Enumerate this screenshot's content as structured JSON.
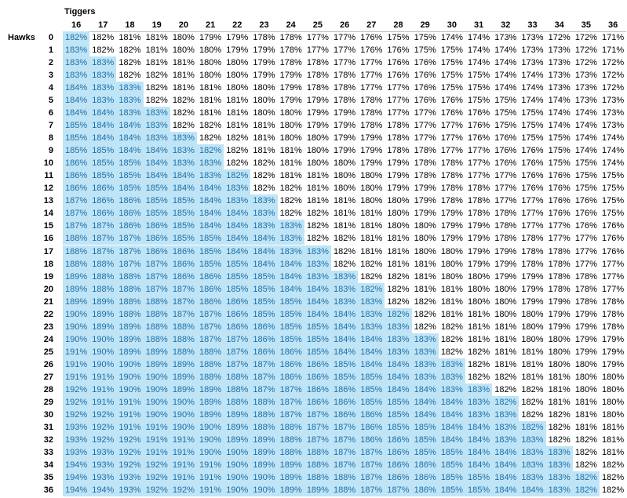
{
  "table": {
    "title": "Tiggers",
    "row_title": "Hawks",
    "highlight_color": "#bfe4f6",
    "highlight_text_color": "#1c6fa6",
    "columns": [
      "16",
      "17",
      "18",
      "19",
      "20",
      "21",
      "22",
      "23",
      "24",
      "25",
      "26",
      "27",
      "28",
      "29",
      "30",
      "31",
      "32",
      "33",
      "34",
      "35",
      "36"
    ],
    "rows": [
      {
        "label": "0",
        "highlight": 1,
        "cells": [
          "182%",
          "182%",
          "181%",
          "181%",
          "180%",
          "179%",
          "179%",
          "178%",
          "178%",
          "177%",
          "177%",
          "176%",
          "175%",
          "175%",
          "174%",
          "174%",
          "173%",
          "173%",
          "172%",
          "172%",
          "171%"
        ]
      },
      {
        "label": "1",
        "highlight": 1,
        "cells": [
          "183%",
          "182%",
          "182%",
          "181%",
          "180%",
          "180%",
          "179%",
          "179%",
          "178%",
          "177%",
          "177%",
          "176%",
          "176%",
          "175%",
          "175%",
          "174%",
          "174%",
          "173%",
          "173%",
          "172%",
          "171%"
        ]
      },
      {
        "label": "2",
        "highlight": 2,
        "cells": [
          "183%",
          "183%",
          "182%",
          "181%",
          "181%",
          "180%",
          "180%",
          "179%",
          "178%",
          "178%",
          "177%",
          "177%",
          "176%",
          "176%",
          "175%",
          "174%",
          "174%",
          "173%",
          "173%",
          "172%",
          "172%"
        ]
      },
      {
        "label": "3",
        "highlight": 2,
        "cells": [
          "183%",
          "183%",
          "182%",
          "182%",
          "181%",
          "180%",
          "180%",
          "179%",
          "179%",
          "178%",
          "178%",
          "177%",
          "176%",
          "176%",
          "175%",
          "175%",
          "174%",
          "174%",
          "173%",
          "173%",
          "172%"
        ]
      },
      {
        "label": "4",
        "highlight": 3,
        "cells": [
          "184%",
          "183%",
          "183%",
          "182%",
          "181%",
          "181%",
          "180%",
          "180%",
          "179%",
          "178%",
          "178%",
          "177%",
          "177%",
          "176%",
          "175%",
          "175%",
          "174%",
          "174%",
          "173%",
          "173%",
          "172%"
        ]
      },
      {
        "label": "5",
        "highlight": 3,
        "cells": [
          "184%",
          "183%",
          "183%",
          "182%",
          "182%",
          "181%",
          "181%",
          "180%",
          "179%",
          "179%",
          "178%",
          "178%",
          "177%",
          "176%",
          "176%",
          "175%",
          "175%",
          "174%",
          "174%",
          "173%",
          "173%"
        ]
      },
      {
        "label": "6",
        "highlight": 4,
        "cells": [
          "184%",
          "184%",
          "183%",
          "183%",
          "182%",
          "181%",
          "181%",
          "180%",
          "180%",
          "179%",
          "179%",
          "178%",
          "177%",
          "177%",
          "176%",
          "176%",
          "175%",
          "175%",
          "174%",
          "174%",
          "173%"
        ]
      },
      {
        "label": "7",
        "highlight": 4,
        "cells": [
          "185%",
          "184%",
          "184%",
          "183%",
          "182%",
          "182%",
          "181%",
          "181%",
          "180%",
          "179%",
          "179%",
          "178%",
          "178%",
          "177%",
          "177%",
          "176%",
          "175%",
          "175%",
          "174%",
          "174%",
          "173%"
        ]
      },
      {
        "label": "8",
        "highlight": 5,
        "cells": [
          "185%",
          "184%",
          "184%",
          "183%",
          "183%",
          "182%",
          "182%",
          "181%",
          "180%",
          "180%",
          "179%",
          "179%",
          "178%",
          "177%",
          "177%",
          "176%",
          "176%",
          "175%",
          "175%",
          "174%",
          "174%"
        ]
      },
      {
        "label": "9",
        "highlight": 6,
        "cells": [
          "185%",
          "185%",
          "184%",
          "184%",
          "183%",
          "182%",
          "182%",
          "181%",
          "181%",
          "180%",
          "179%",
          "179%",
          "178%",
          "178%",
          "177%",
          "177%",
          "176%",
          "176%",
          "175%",
          "174%",
          "174%"
        ]
      },
      {
        "label": "10",
        "highlight": 6,
        "cells": [
          "186%",
          "185%",
          "185%",
          "184%",
          "183%",
          "183%",
          "182%",
          "182%",
          "181%",
          "180%",
          "180%",
          "179%",
          "179%",
          "178%",
          "178%",
          "177%",
          "176%",
          "176%",
          "175%",
          "175%",
          "174%"
        ]
      },
      {
        "label": "11",
        "highlight": 7,
        "cells": [
          "186%",
          "185%",
          "185%",
          "184%",
          "184%",
          "183%",
          "182%",
          "182%",
          "181%",
          "181%",
          "180%",
          "180%",
          "179%",
          "178%",
          "178%",
          "177%",
          "177%",
          "176%",
          "176%",
          "175%",
          "175%"
        ]
      },
      {
        "label": "12",
        "highlight": 7,
        "cells": [
          "186%",
          "186%",
          "185%",
          "185%",
          "184%",
          "184%",
          "183%",
          "182%",
          "182%",
          "181%",
          "180%",
          "180%",
          "179%",
          "179%",
          "178%",
          "178%",
          "177%",
          "176%",
          "176%",
          "175%",
          "175%"
        ]
      },
      {
        "label": "13",
        "highlight": 8,
        "cells": [
          "187%",
          "186%",
          "186%",
          "185%",
          "185%",
          "184%",
          "183%",
          "183%",
          "182%",
          "181%",
          "181%",
          "180%",
          "180%",
          "179%",
          "178%",
          "178%",
          "177%",
          "177%",
          "176%",
          "176%",
          "175%"
        ]
      },
      {
        "label": "14",
        "highlight": 8,
        "cells": [
          "187%",
          "186%",
          "186%",
          "185%",
          "185%",
          "184%",
          "184%",
          "183%",
          "182%",
          "182%",
          "181%",
          "181%",
          "180%",
          "179%",
          "179%",
          "178%",
          "178%",
          "177%",
          "176%",
          "176%",
          "175%"
        ]
      },
      {
        "label": "15",
        "highlight": 9,
        "cells": [
          "187%",
          "187%",
          "186%",
          "186%",
          "185%",
          "184%",
          "184%",
          "183%",
          "183%",
          "182%",
          "181%",
          "181%",
          "180%",
          "180%",
          "179%",
          "179%",
          "178%",
          "177%",
          "177%",
          "176%",
          "176%"
        ]
      },
      {
        "label": "16",
        "highlight": 9,
        "cells": [
          "188%",
          "187%",
          "187%",
          "186%",
          "185%",
          "185%",
          "184%",
          "184%",
          "183%",
          "182%",
          "182%",
          "181%",
          "181%",
          "180%",
          "179%",
          "179%",
          "178%",
          "178%",
          "177%",
          "177%",
          "176%"
        ]
      },
      {
        "label": "17",
        "highlight": 10,
        "cells": [
          "188%",
          "187%",
          "187%",
          "186%",
          "186%",
          "185%",
          "184%",
          "184%",
          "183%",
          "183%",
          "182%",
          "181%",
          "181%",
          "180%",
          "180%",
          "179%",
          "179%",
          "178%",
          "178%",
          "177%",
          "176%"
        ]
      },
      {
        "label": "18",
        "highlight": 10,
        "cells": [
          "188%",
          "188%",
          "187%",
          "187%",
          "186%",
          "185%",
          "185%",
          "184%",
          "184%",
          "183%",
          "182%",
          "182%",
          "181%",
          "181%",
          "180%",
          "179%",
          "179%",
          "178%",
          "178%",
          "177%",
          "177%"
        ]
      },
      {
        "label": "19",
        "highlight": 11,
        "cells": [
          "189%",
          "188%",
          "188%",
          "187%",
          "186%",
          "186%",
          "185%",
          "185%",
          "184%",
          "183%",
          "183%",
          "182%",
          "182%",
          "181%",
          "180%",
          "180%",
          "179%",
          "179%",
          "178%",
          "178%",
          "177%"
        ]
      },
      {
        "label": "20",
        "highlight": 12,
        "cells": [
          "189%",
          "188%",
          "188%",
          "187%",
          "187%",
          "186%",
          "185%",
          "185%",
          "184%",
          "184%",
          "183%",
          "182%",
          "182%",
          "181%",
          "181%",
          "180%",
          "180%",
          "179%",
          "178%",
          "178%",
          "177%"
        ]
      },
      {
        "label": "21",
        "highlight": 12,
        "cells": [
          "189%",
          "189%",
          "188%",
          "188%",
          "187%",
          "186%",
          "186%",
          "185%",
          "185%",
          "184%",
          "183%",
          "183%",
          "182%",
          "182%",
          "181%",
          "180%",
          "180%",
          "179%",
          "179%",
          "178%",
          "178%"
        ]
      },
      {
        "label": "22",
        "highlight": 13,
        "cells": [
          "190%",
          "189%",
          "188%",
          "188%",
          "187%",
          "187%",
          "186%",
          "185%",
          "185%",
          "184%",
          "184%",
          "183%",
          "182%",
          "182%",
          "181%",
          "181%",
          "180%",
          "180%",
          "179%",
          "179%",
          "178%"
        ]
      },
      {
        "label": "23",
        "highlight": 13,
        "cells": [
          "190%",
          "189%",
          "189%",
          "188%",
          "188%",
          "187%",
          "186%",
          "186%",
          "185%",
          "185%",
          "184%",
          "183%",
          "183%",
          "182%",
          "182%",
          "181%",
          "181%",
          "180%",
          "179%",
          "179%",
          "178%"
        ]
      },
      {
        "label": "24",
        "highlight": 14,
        "cells": [
          "190%",
          "190%",
          "189%",
          "188%",
          "188%",
          "187%",
          "187%",
          "186%",
          "185%",
          "185%",
          "184%",
          "184%",
          "183%",
          "183%",
          "182%",
          "181%",
          "181%",
          "180%",
          "180%",
          "179%",
          "179%"
        ]
      },
      {
        "label": "25",
        "highlight": 14,
        "cells": [
          "191%",
          "190%",
          "189%",
          "189%",
          "188%",
          "188%",
          "187%",
          "186%",
          "186%",
          "185%",
          "184%",
          "184%",
          "183%",
          "183%",
          "182%",
          "182%",
          "181%",
          "181%",
          "180%",
          "179%",
          "179%"
        ]
      },
      {
        "label": "26",
        "highlight": 15,
        "cells": [
          "191%",
          "190%",
          "190%",
          "189%",
          "189%",
          "188%",
          "187%",
          "187%",
          "186%",
          "186%",
          "185%",
          "184%",
          "184%",
          "183%",
          "183%",
          "182%",
          "181%",
          "181%",
          "180%",
          "180%",
          "179%"
        ]
      },
      {
        "label": "27",
        "highlight": 15,
        "cells": [
          "191%",
          "191%",
          "190%",
          "190%",
          "189%",
          "188%",
          "188%",
          "187%",
          "186%",
          "186%",
          "185%",
          "185%",
          "184%",
          "183%",
          "183%",
          "182%",
          "182%",
          "181%",
          "181%",
          "180%",
          "180%"
        ]
      },
      {
        "label": "28",
        "highlight": 16,
        "cells": [
          "192%",
          "191%",
          "190%",
          "190%",
          "189%",
          "189%",
          "188%",
          "187%",
          "187%",
          "186%",
          "186%",
          "185%",
          "184%",
          "184%",
          "183%",
          "183%",
          "182%",
          "182%",
          "181%",
          "180%",
          "180%"
        ]
      },
      {
        "label": "29",
        "highlight": 17,
        "cells": [
          "192%",
          "191%",
          "191%",
          "190%",
          "190%",
          "189%",
          "188%",
          "188%",
          "187%",
          "186%",
          "186%",
          "185%",
          "185%",
          "184%",
          "184%",
          "183%",
          "182%",
          "182%",
          "181%",
          "181%",
          "180%"
        ]
      },
      {
        "label": "30",
        "highlight": 17,
        "cells": [
          "192%",
          "192%",
          "191%",
          "190%",
          "190%",
          "189%",
          "189%",
          "188%",
          "187%",
          "187%",
          "186%",
          "186%",
          "185%",
          "184%",
          "184%",
          "183%",
          "183%",
          "182%",
          "182%",
          "181%",
          "180%"
        ]
      },
      {
        "label": "31",
        "highlight": 18,
        "cells": [
          "193%",
          "192%",
          "191%",
          "191%",
          "190%",
          "190%",
          "189%",
          "188%",
          "188%",
          "187%",
          "187%",
          "186%",
          "185%",
          "185%",
          "184%",
          "184%",
          "183%",
          "182%",
          "182%",
          "181%",
          "181%"
        ]
      },
      {
        "label": "32",
        "highlight": 18,
        "cells": [
          "193%",
          "192%",
          "192%",
          "191%",
          "191%",
          "190%",
          "189%",
          "189%",
          "188%",
          "187%",
          "187%",
          "186%",
          "186%",
          "185%",
          "184%",
          "184%",
          "183%",
          "183%",
          "182%",
          "182%",
          "181%"
        ]
      },
      {
        "label": "33",
        "highlight": 19,
        "cells": [
          "193%",
          "193%",
          "192%",
          "191%",
          "191%",
          "190%",
          "190%",
          "189%",
          "188%",
          "188%",
          "187%",
          "187%",
          "186%",
          "185%",
          "185%",
          "184%",
          "184%",
          "183%",
          "183%",
          "182%",
          "181%"
        ]
      },
      {
        "label": "34",
        "highlight": 19,
        "cells": [
          "194%",
          "193%",
          "192%",
          "192%",
          "191%",
          "191%",
          "190%",
          "189%",
          "189%",
          "188%",
          "187%",
          "187%",
          "186%",
          "186%",
          "185%",
          "184%",
          "184%",
          "183%",
          "183%",
          "182%",
          "182%"
        ]
      },
      {
        "label": "35",
        "highlight": 20,
        "cells": [
          "194%",
          "193%",
          "193%",
          "192%",
          "191%",
          "191%",
          "190%",
          "190%",
          "189%",
          "188%",
          "188%",
          "187%",
          "186%",
          "186%",
          "185%",
          "185%",
          "184%",
          "183%",
          "183%",
          "182%",
          "182%"
        ]
      },
      {
        "label": "36",
        "highlight": 20,
        "cells": [
          "194%",
          "194%",
          "193%",
          "192%",
          "192%",
          "191%",
          "190%",
          "190%",
          "189%",
          "189%",
          "188%",
          "187%",
          "187%",
          "186%",
          "185%",
          "185%",
          "184%",
          "184%",
          "183%",
          "182%",
          "182%"
        ]
      }
    ]
  }
}
